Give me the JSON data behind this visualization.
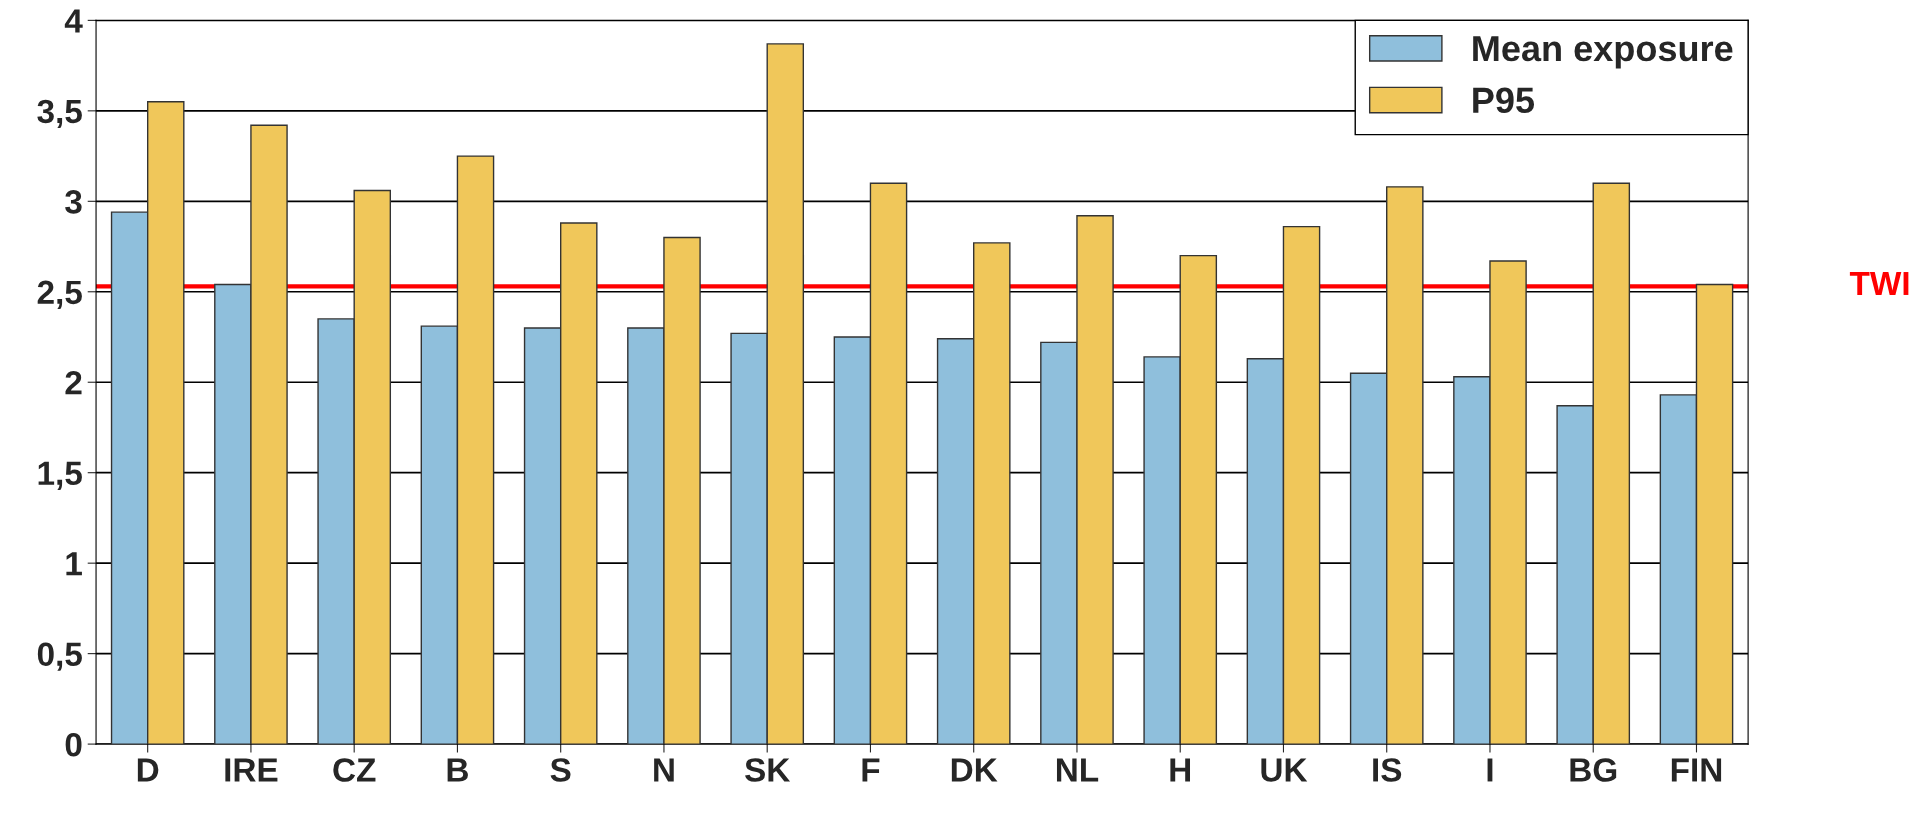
{
  "chart_data": {
    "type": "bar",
    "categories": [
      "D",
      "IRE",
      "CZ",
      "B",
      "S",
      "N",
      "SK",
      "F",
      "DK",
      "NL",
      "H",
      "UK",
      "IS",
      "I",
      "BG",
      "FIN"
    ],
    "series": [
      {
        "name": "Mean exposure",
        "color": "#8fbfdc",
        "values": [
          2.94,
          2.54,
          2.35,
          2.31,
          2.3,
          2.3,
          2.27,
          2.25,
          2.24,
          2.22,
          2.14,
          2.13,
          2.05,
          2.03,
          1.87,
          1.93
        ]
      },
      {
        "name": "P95",
        "color": "#f0c75a",
        "values": [
          3.55,
          3.42,
          3.06,
          3.25,
          2.88,
          2.8,
          3.87,
          3.1,
          2.77,
          2.92,
          2.7,
          2.86,
          3.08,
          2.67,
          3.1,
          2.54
        ]
      }
    ],
    "ylim": [
      0,
      4
    ],
    "yticks": [
      0,
      {
        "value": 0.5,
        "label": "0,5"
      },
      1,
      {
        "value": 1.5,
        "label": "1,5"
      },
      2,
      {
        "value": 2.5,
        "label": "2,5"
      },
      3,
      {
        "value": 3.5,
        "label": "3,5"
      },
      4
    ],
    "grid": "y",
    "legend": "top right",
    "ref_lines": [
      {
        "axis": "y",
        "value": 2.53,
        "label": "TWI",
        "color": "#ff0000"
      }
    ]
  }
}
